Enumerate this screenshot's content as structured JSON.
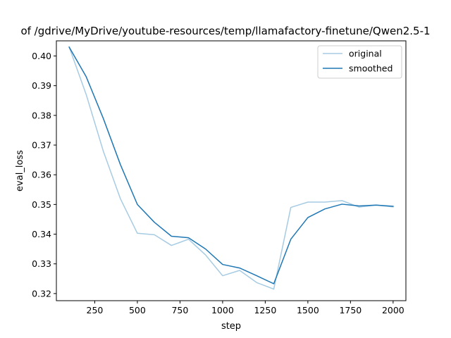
{
  "chart_data": {
    "type": "line",
    "title": "of /gdrive/MyDrive/youtube-resources/temp/llamafactory-finetune/Qwen2.5-1",
    "xlabel": "step",
    "ylabel": "eval_loss",
    "xlim": [
      25,
      2075
    ],
    "ylim": [
      0.3176,
      0.4051
    ],
    "x_ticks": [
      250,
      500,
      750,
      1000,
      1250,
      1500,
      1750,
      2000
    ],
    "x_tick_labels": [
      "250",
      "500",
      "750",
      "1000",
      "1250",
      "1500",
      "1750",
      "2000"
    ],
    "y_ticks": [
      0.32,
      0.33,
      0.34,
      0.35,
      0.36,
      0.37,
      0.38,
      0.39,
      0.4
    ],
    "y_tick_labels": [
      "0.32",
      "0.33",
      "0.34",
      "0.35",
      "0.36",
      "0.37",
      "0.38",
      "0.39",
      "0.40"
    ],
    "grid": false,
    "legend_position": "upper right",
    "x": [
      100,
      200,
      300,
      400,
      500,
      600,
      700,
      800,
      900,
      1000,
      1100,
      1200,
      1300,
      1400,
      1500,
      1600,
      1700,
      1800,
      1900,
      2000
    ],
    "series": [
      {
        "name": "original",
        "color": "#a6cbe3",
        "values": [
          0.403,
          0.387,
          0.368,
          0.352,
          0.3403,
          0.3398,
          0.3362,
          0.3383,
          0.333,
          0.326,
          0.3278,
          0.3237,
          0.3215,
          0.349,
          0.3508,
          0.3508,
          0.3513,
          0.3491,
          0.3498,
          0.3492
        ]
      },
      {
        "name": "smoothed",
        "color": "#1f77b4",
        "values": [
          0.403,
          0.393,
          0.379,
          0.3635,
          0.35,
          0.344,
          0.3393,
          0.3388,
          0.335,
          0.3298,
          0.3286,
          0.326,
          0.3233,
          0.3383,
          0.3456,
          0.3485,
          0.3501,
          0.3495,
          0.3498,
          0.3494
        ]
      }
    ]
  }
}
